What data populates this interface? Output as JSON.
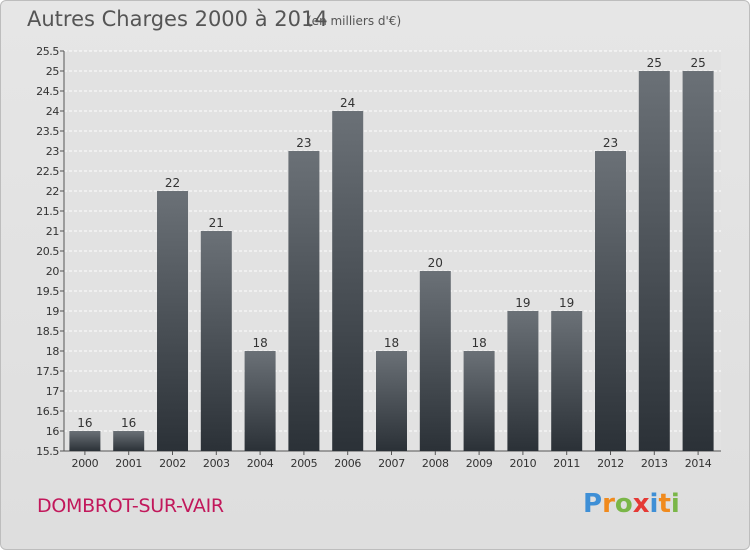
{
  "header": {
    "title": "Autres Charges 2000 à 2014",
    "subtitle": "(en milliers d'€)"
  },
  "footer": {
    "place": "DOMBROT-SUR-VAIR",
    "logo_letters": [
      "P",
      "r",
      "o",
      "x",
      "i",
      "t",
      "i"
    ],
    "logo_colors": [
      "#3e8fd6",
      "#f08a1d",
      "#7ab648",
      "#e53935",
      "#3e8fd6",
      "#f08a1d",
      "#7ab648"
    ]
  },
  "chart_data": {
    "type": "bar",
    "title": "Autres Charges 2000 à 2014",
    "subtitle": "(en milliers d'€)",
    "categories": [
      "2000",
      "2001",
      "2002",
      "2003",
      "2004",
      "2005",
      "2006",
      "2007",
      "2008",
      "2009",
      "2010",
      "2011",
      "2012",
      "2013",
      "2014"
    ],
    "values": [
      16,
      16,
      22,
      21,
      18,
      23,
      24,
      18,
      20,
      18,
      19,
      19,
      23,
      25,
      25
    ],
    "ylim": [
      15.5,
      25.5
    ],
    "yticks": [
      "15.5",
      "16",
      "16.5",
      "17",
      "17.5",
      "18",
      "18.5",
      "19",
      "19.5",
      "20",
      "20.5",
      "21",
      "21.5",
      "22",
      "22.5",
      "23",
      "23.5",
      "24",
      "24.5",
      "25",
      "25.5"
    ],
    "grid": true,
    "colors": {
      "bar_top": "#6b7177",
      "bar_bottom": "#2b3137",
      "grid": "#ffffff",
      "text": "#333333"
    }
  }
}
